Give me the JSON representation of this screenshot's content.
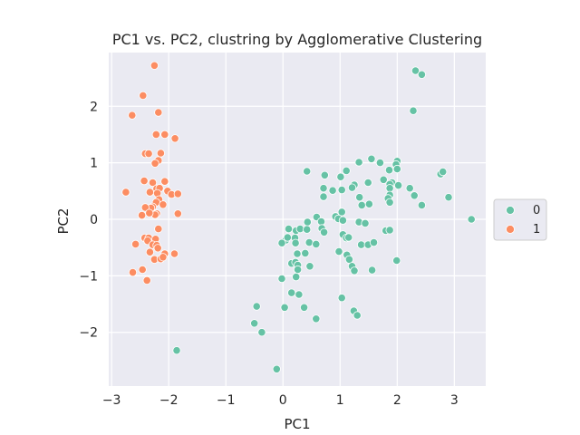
{
  "chart_data": {
    "type": "scatter",
    "title": "PC1 vs. PC2, clustring by Agglomerative Clustering",
    "xlabel": "PC1",
    "ylabel": "PC2",
    "xlim": [
      -3.05,
      3.55
    ],
    "ylim": [
      -2.95,
      2.95
    ],
    "xticks": [
      -3,
      -2,
      -1,
      0,
      1,
      2,
      3
    ],
    "yticks": [
      -2,
      -1,
      0,
      1,
      2
    ],
    "grid": true,
    "legend": {
      "placement": "center-right-outside"
    },
    "colors": {
      "0": "#66c2a5",
      "1": "#fc8d62",
      "plot_bg": "#eaeaf2",
      "grid": "#ffffff"
    },
    "series": [
      {
        "name": "0",
        "color": "#66c2a5",
        "points": [
          [
            2.32,
            2.63
          ],
          [
            2.43,
            2.56
          ],
          [
            2.28,
            1.92
          ],
          [
            0.42,
            0.85
          ],
          [
            1.11,
            0.86
          ],
          [
            1.33,
            1.01
          ],
          [
            1.55,
            1.07
          ],
          [
            1.7,
            1.0
          ],
          [
            2.0,
            1.03
          ],
          [
            1.98,
            0.97
          ],
          [
            1.86,
            0.87
          ],
          [
            2.0,
            0.89
          ],
          [
            2.76,
            0.8
          ],
          [
            2.8,
            0.84
          ],
          [
            0.73,
            0.78
          ],
          [
            1.01,
            0.75
          ],
          [
            1.25,
            0.61
          ],
          [
            1.49,
            0.65
          ],
          [
            1.76,
            0.7
          ],
          [
            1.91,
            0.65
          ],
          [
            1.87,
            0.62
          ],
          [
            0.71,
            0.55
          ],
          [
            0.87,
            0.51
          ],
          [
            1.03,
            0.52
          ],
          [
            1.21,
            0.56
          ],
          [
            1.87,
            0.55
          ],
          [
            2.02,
            0.6
          ],
          [
            2.22,
            0.55
          ],
          [
            0.71,
            0.4
          ],
          [
            1.34,
            0.39
          ],
          [
            1.87,
            0.43
          ],
          [
            2.3,
            0.42
          ],
          [
            2.9,
            0.39
          ],
          [
            1.84,
            0.37
          ],
          [
            1.38,
            0.25
          ],
          [
            1.51,
            0.27
          ],
          [
            1.87,
            0.3
          ],
          [
            2.43,
            0.25
          ],
          [
            0.59,
            0.04
          ],
          [
            0.67,
            -0.04
          ],
          [
            0.92,
            0.05
          ],
          [
            0.97,
            0.01
          ],
          [
            1.05,
            -0.02
          ],
          [
            1.33,
            -0.05
          ],
          [
            1.44,
            -0.07
          ],
          [
            1.03,
            0.13
          ],
          [
            3.3,
            0.0
          ],
          [
            0.43,
            -0.05
          ],
          [
            0.1,
            -0.17
          ],
          [
            0.23,
            -0.2
          ],
          [
            0.3,
            -0.17
          ],
          [
            0.42,
            -0.18
          ],
          [
            0.68,
            -0.16
          ],
          [
            0.72,
            -0.23
          ],
          [
            1.05,
            -0.27
          ],
          [
            1.11,
            -0.33
          ],
          [
            0.21,
            -0.33
          ],
          [
            0.05,
            -0.37
          ],
          [
            0.08,
            -0.32
          ],
          [
            0.22,
            -0.42
          ],
          [
            0.46,
            -0.41
          ],
          [
            0.58,
            -0.44
          ],
          [
            1.15,
            -0.32
          ],
          [
            1.37,
            -0.45
          ],
          [
            1.49,
            -0.45
          ],
          [
            1.59,
            -0.41
          ],
          [
            1.8,
            -0.2
          ],
          [
            1.87,
            -0.19
          ],
          [
            -0.02,
            -0.42
          ],
          [
            0.25,
            -0.61
          ],
          [
            0.39,
            -0.6
          ],
          [
            0.98,
            -0.57
          ],
          [
            1.12,
            -0.63
          ],
          [
            1.16,
            -0.71
          ],
          [
            0.15,
            -0.78
          ],
          [
            0.22,
            -0.76
          ],
          [
            0.26,
            -0.81
          ],
          [
            0.26,
            -0.89
          ],
          [
            0.47,
            -0.83
          ],
          [
            1.21,
            -0.83
          ],
          [
            1.25,
            -0.91
          ],
          [
            1.56,
            -0.9
          ],
          [
            1.99,
            -0.73
          ],
          [
            -0.02,
            -1.05
          ],
          [
            0.23,
            -1.02
          ],
          [
            0.15,
            -1.3
          ],
          [
            0.28,
            -1.33
          ],
          [
            1.03,
            -1.39
          ],
          [
            0.37,
            -1.56
          ],
          [
            0.03,
            -1.56
          ],
          [
            0.58,
            -1.76
          ],
          [
            1.24,
            -1.62
          ],
          [
            1.3,
            -1.7
          ],
          [
            -0.46,
            -1.54
          ],
          [
            -0.5,
            -1.84
          ],
          [
            -0.37,
            -2.0
          ],
          [
            -0.11,
            -2.65
          ],
          [
            -1.86,
            -2.32
          ]
        ]
      },
      {
        "name": "1",
        "color": "#fc8d62",
        "points": [
          [
            -2.25,
            2.72
          ],
          [
            -2.45,
            2.19
          ],
          [
            -2.64,
            1.84
          ],
          [
            -2.18,
            1.89
          ],
          [
            -2.22,
            1.5
          ],
          [
            -2.07,
            1.5
          ],
          [
            -1.89,
            1.43
          ],
          [
            -2.41,
            1.16
          ],
          [
            -2.35,
            1.16
          ],
          [
            -2.14,
            1.17
          ],
          [
            -2.18,
            1.04
          ],
          [
            -2.24,
            0.99
          ],
          [
            -2.43,
            0.68
          ],
          [
            -2.28,
            0.65
          ],
          [
            -2.07,
            0.67
          ],
          [
            -2.21,
            0.54
          ],
          [
            -2.16,
            0.55
          ],
          [
            -2.75,
            0.48
          ],
          [
            -2.33,
            0.48
          ],
          [
            -2.2,
            0.46
          ],
          [
            -2.02,
            0.5
          ],
          [
            -1.95,
            0.44
          ],
          [
            -1.84,
            0.45
          ],
          [
            -2.17,
            0.35
          ],
          [
            -2.22,
            0.3
          ],
          [
            -2.1,
            0.26
          ],
          [
            -2.28,
            0.22
          ],
          [
            -2.31,
            0.2
          ],
          [
            -2.41,
            0.21
          ],
          [
            -2.21,
            0.1
          ],
          [
            -2.47,
            0.07
          ],
          [
            -2.24,
            0.08
          ],
          [
            -1.84,
            0.1
          ],
          [
            -2.34,
            0.11
          ],
          [
            -2.18,
            -0.17
          ],
          [
            -2.42,
            -0.33
          ],
          [
            -2.35,
            -0.33
          ],
          [
            -2.23,
            -0.35
          ],
          [
            -2.37,
            -0.38
          ],
          [
            -2.58,
            -0.44
          ],
          [
            -2.28,
            -0.45
          ],
          [
            -2.21,
            -0.46
          ],
          [
            -2.19,
            -0.51
          ],
          [
            -2.33,
            -0.58
          ],
          [
            -2.07,
            -0.61
          ],
          [
            -1.9,
            -0.61
          ],
          [
            -2.25,
            -0.71
          ],
          [
            -2.14,
            -0.7
          ],
          [
            -2.1,
            -0.67
          ],
          [
            -2.63,
            -0.94
          ],
          [
            -2.46,
            -0.89
          ],
          [
            -2.38,
            -1.08
          ]
        ]
      }
    ]
  }
}
